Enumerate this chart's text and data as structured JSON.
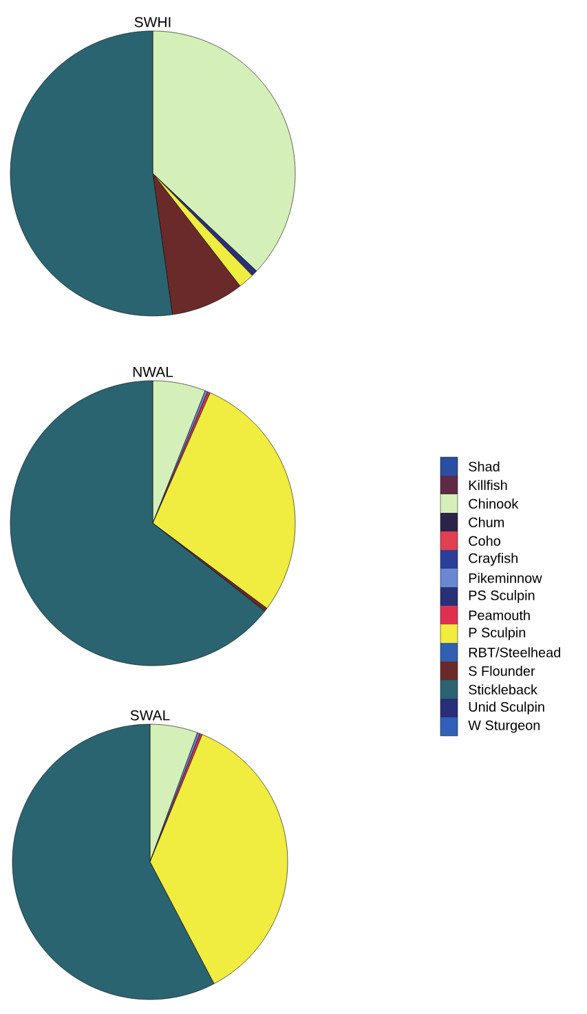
{
  "chart_data": [
    {
      "type": "pie",
      "title": "SWHI",
      "legend": false,
      "categories": [
        null,
        null,
        null,
        null,
        null,
        null,
        null,
        null,
        null,
        null,
        null,
        null,
        null,
        null,
        null
      ],
      "values": [
        0,
        0,
        37,
        0,
        0,
        0,
        0,
        0.7,
        0,
        1.8,
        0,
        8.3,
        52.2,
        0,
        0
      ],
      "colors": [
        "#2a4fa0",
        "#5e2a45",
        "#d4f0b8",
        "#2a2448",
        "#e04050",
        "#2a3f9a",
        "#6a88d0",
        "#28307a",
        "#e03050",
        "#f0ec40",
        "#3060b0",
        "#6a2a2a",
        "#2a6470",
        "#282e78",
        "#3060b8"
      ]
    },
    {
      "type": "pie",
      "title": "NWAL",
      "legend": "right",
      "categories": [
        "Shad",
        "Killfish",
        "Chinook",
        "Chum",
        "Coho",
        "Crayfish",
        "Pikeminnow",
        "PS Sculpin",
        "Peamouth",
        "P Sculpin",
        "RBT/Steelhead",
        "S Flounder",
        "Stickleback",
        "Unid Sculpin",
        "W Sturgeon"
      ],
      "values": [
        0,
        0,
        6,
        0,
        0,
        0,
        0.3,
        0,
        0.3,
        28.6,
        0,
        0.4,
        64.4,
        0,
        0
      ],
      "colors": [
        "#2a4fa0",
        "#5e2a45",
        "#d4f0b8",
        "#2a2448",
        "#e04050",
        "#2a3f9a",
        "#6a88d0",
        "#28307a",
        "#e03050",
        "#f0ec40",
        "#3060b0",
        "#6a2a2a",
        "#2a6470",
        "#282e78",
        "#3060b8"
      ]
    },
    {
      "type": "pie",
      "title": "SWAL",
      "legend": false,
      "categories": [
        null,
        null,
        null,
        null,
        null,
        null,
        null,
        null,
        null,
        null,
        null,
        null,
        null,
        null,
        null
      ],
      "values": [
        0,
        0,
        5.6,
        0,
        0,
        0,
        0.3,
        0,
        0.3,
        36.1,
        0,
        0,
        57.7,
        0,
        0
      ],
      "colors": [
        "#2a4fa0",
        "#5e2a45",
        "#d4f0b8",
        "#2a2448",
        "#e04050",
        "#2a3f9a",
        "#6a88d0",
        "#28307a",
        "#e03050",
        "#f0ec40",
        "#3060b0",
        "#6a2a2a",
        "#2a6470",
        "#282e78",
        "#3060b8"
      ]
    }
  ]
}
